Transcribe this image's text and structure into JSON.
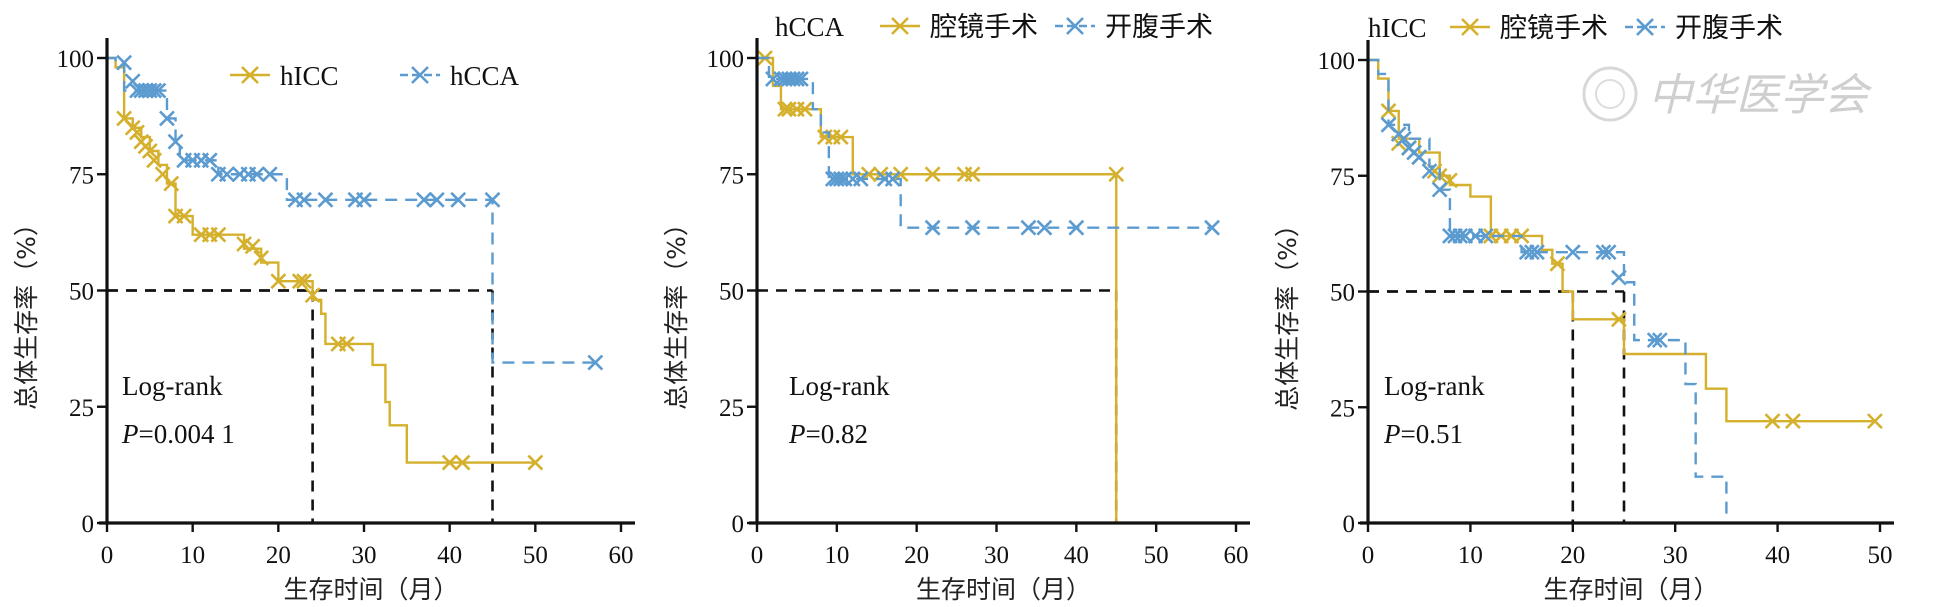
{
  "watermark": "中华医学会",
  "colors": {
    "gold": "#D4B02C",
    "blue": "#5B9BD0",
    "axis": "#111111",
    "ref": "#111111"
  },
  "chart_data": [
    {
      "type": "line",
      "subtype": "kaplan-meier",
      "title": "",
      "xlabel": "生存时间（月）",
      "ylabel": "总体生存率（%）",
      "xlim": [
        0,
        60
      ],
      "ylim": [
        0,
        100
      ],
      "xticks": [
        0,
        10,
        20,
        30,
        40,
        50,
        60
      ],
      "yticks": [
        0,
        25,
        50,
        75,
        100
      ],
      "legend_position": "top-right",
      "annotation": {
        "line1": "Log-rank",
        "p_label": "P",
        "p_value": "=0.004 1"
      },
      "median_lines": [
        24,
        45
      ],
      "series": [
        {
          "name": "hICC",
          "color": "gold",
          "style": "solid",
          "steps": [
            [
              0,
              100
            ],
            [
              1,
              98
            ],
            [
              2,
              96
            ],
            [
              2,
              87
            ],
            [
              3,
              85
            ],
            [
              4,
              83
            ],
            [
              5,
              80
            ],
            [
              6,
              77
            ],
            [
              7,
              73
            ],
            [
              8,
              66
            ],
            [
              10,
              62
            ],
            [
              14,
              62
            ],
            [
              16,
              59
            ],
            [
              18,
              56
            ],
            [
              20,
              52
            ],
            [
              23,
              52
            ],
            [
              24,
              48
            ],
            [
              25,
              45
            ],
            [
              25.5,
              38.5
            ],
            [
              31,
              38.5
            ],
            [
              31,
              34
            ],
            [
              32,
              34
            ],
            [
              32.5,
              26
            ],
            [
              33,
              26
            ],
            [
              33,
              21
            ],
            [
              35,
              21
            ],
            [
              35,
              13
            ],
            [
              50,
              13
            ]
          ],
          "censored": [
            [
              2,
              87
            ],
            [
              3,
              85
            ],
            [
              3.5,
              84
            ],
            [
              4,
              82
            ],
            [
              4.5,
              81
            ],
            [
              5,
              80
            ],
            [
              5.5,
              78
            ],
            [
              6.5,
              75
            ],
            [
              7.5,
              73
            ],
            [
              8,
              66
            ],
            [
              9,
              66
            ],
            [
              11,
              62
            ],
            [
              12,
              62
            ],
            [
              13,
              62
            ],
            [
              16,
              60
            ],
            [
              17,
              59.5
            ],
            [
              18,
              57
            ],
            [
              20,
              52
            ],
            [
              22.5,
              52
            ],
            [
              23,
              52
            ],
            [
              24,
              49
            ],
            [
              27,
              38.5
            ],
            [
              28,
              38.5
            ],
            [
              40,
              13
            ],
            [
              41.5,
              13
            ],
            [
              50,
              13
            ]
          ]
        },
        {
          "name": "hCCA",
          "color": "blue",
          "style": "dashed",
          "steps": [
            [
              0,
              100
            ],
            [
              1,
              99
            ],
            [
              2,
              95
            ],
            [
              2,
              93
            ],
            [
              7,
              93
            ],
            [
              7,
              87
            ],
            [
              8,
              82
            ],
            [
              8.5,
              78
            ],
            [
              13,
              78
            ],
            [
              13,
              75
            ],
            [
              21,
              75
            ],
            [
              21,
              69.5
            ],
            [
              45,
              69.5
            ],
            [
              45,
              34.5
            ],
            [
              57,
              34.5
            ]
          ],
          "censored": [
            [
              2,
              99
            ],
            [
              3,
              95
            ],
            [
              3.5,
              93
            ],
            [
              4,
              93
            ],
            [
              4.5,
              93
            ],
            [
              5,
              93
            ],
            [
              5.5,
              93
            ],
            [
              6,
              93
            ],
            [
              7,
              87
            ],
            [
              8,
              82
            ],
            [
              9,
              78
            ],
            [
              10,
              78
            ],
            [
              11,
              78
            ],
            [
              12,
              78
            ],
            [
              13,
              75
            ],
            [
              14,
              75
            ],
            [
              15.5,
              75
            ],
            [
              16.5,
              75
            ],
            [
              17.5,
              75
            ],
            [
              19,
              75
            ],
            [
              22,
              69.5
            ],
            [
              23,
              69.5
            ],
            [
              25.5,
              69.5
            ],
            [
              29,
              69.5
            ],
            [
              30,
              69.5
            ],
            [
              37,
              69.5
            ],
            [
              38.5,
              69.5
            ],
            [
              41,
              69.5
            ],
            [
              45,
              69.5
            ],
            [
              57,
              34.5
            ]
          ]
        }
      ]
    },
    {
      "type": "line",
      "subtype": "kaplan-meier",
      "title": "hCCA",
      "xlabel": "生存时间（月）",
      "ylabel": "总体生存率（%）",
      "xlim": [
        0,
        60
      ],
      "ylim": [
        0,
        100
      ],
      "xticks": [
        0,
        10,
        20,
        30,
        40,
        50,
        60
      ],
      "yticks": [
        0,
        25,
        50,
        75,
        100
      ],
      "legend_position": "top",
      "annotation": {
        "line1": "Log-rank",
        "p_label": "P",
        "p_value": "=0.82"
      },
      "median_lines": [
        45
      ],
      "series": [
        {
          "name": "腔镜手术",
          "color": "gold",
          "style": "solid",
          "steps": [
            [
              0,
              100
            ],
            [
              2,
              100
            ],
            [
              2,
              94
            ],
            [
              3,
              94
            ],
            [
              3,
              89
            ],
            [
              8,
              89
            ],
            [
              8,
              83
            ],
            [
              12,
              83
            ],
            [
              12,
              75
            ],
            [
              45,
              75
            ],
            [
              45,
              0
            ]
          ],
          "censored": [
            [
              1,
              100
            ],
            [
              3.5,
              89
            ],
            [
              4,
              89
            ],
            [
              5,
              89
            ],
            [
              6,
              89
            ],
            [
              8.5,
              83
            ],
            [
              9.5,
              83
            ],
            [
              10.5,
              83
            ],
            [
              14,
              75
            ],
            [
              15.5,
              75
            ],
            [
              18,
              75
            ],
            [
              22,
              75
            ],
            [
              26,
              75
            ],
            [
              27,
              75
            ],
            [
              45,
              75
            ]
          ]
        },
        {
          "name": "开腹手术",
          "color": "blue",
          "style": "dashed",
          "steps": [
            [
              0,
              100
            ],
            [
              1.5,
              100
            ],
            [
              1.5,
              95.5
            ],
            [
              7,
              95.5
            ],
            [
              7,
              89
            ],
            [
              8,
              89
            ],
            [
              8,
              84
            ],
            [
              9,
              84
            ],
            [
              9,
              74
            ],
            [
              18,
              74
            ],
            [
              18,
              63.5
            ],
            [
              57,
              63.5
            ]
          ],
          "censored": [
            [
              2,
              95.5
            ],
            [
              3,
              95.5
            ],
            [
              3.5,
              95.5
            ],
            [
              4,
              95.5
            ],
            [
              4.5,
              95.5
            ],
            [
              5,
              95.5
            ],
            [
              5.5,
              95.5
            ],
            [
              9.5,
              74
            ],
            [
              10,
              74
            ],
            [
              10.5,
              74
            ],
            [
              11,
              74
            ],
            [
              12,
              74
            ],
            [
              13,
              74
            ],
            [
              16,
              74
            ],
            [
              17,
              74
            ],
            [
              22,
              63.5
            ],
            [
              27,
              63.5
            ],
            [
              34,
              63.5
            ],
            [
              36,
              63.5
            ],
            [
              40,
              63.5
            ],
            [
              57,
              63.5
            ]
          ]
        }
      ]
    },
    {
      "type": "line",
      "subtype": "kaplan-meier",
      "title": "hICC",
      "xlabel": "生存时间（月）",
      "ylabel": "总体生存率（%）",
      "xlim": [
        0,
        50
      ],
      "ylim": [
        0,
        100
      ],
      "xticks": [
        0,
        10,
        20,
        30,
        40,
        50
      ],
      "yticks": [
        0,
        25,
        50,
        75,
        100
      ],
      "legend_position": "top",
      "annotation": {
        "line1": "Log-rank",
        "p_label": "P",
        "p_value": "=0.51"
      },
      "median_lines": [
        20,
        25
      ],
      "series": [
        {
          "name": "腔镜手术",
          "color": "gold",
          "style": "solid",
          "steps": [
            [
              0,
              100
            ],
            [
              1,
              100
            ],
            [
              1,
              96
            ],
            [
              2,
              96
            ],
            [
              2,
              89
            ],
            [
              3,
              89
            ],
            [
              3,
              83
            ],
            [
              5,
              80
            ],
            [
              7,
              75
            ],
            [
              8,
              73
            ],
            [
              10,
              70.5
            ],
            [
              12,
              70.5
            ],
            [
              12,
              62
            ],
            [
              17,
              62
            ],
            [
              17,
              59
            ],
            [
              18,
              56
            ],
            [
              19,
              50
            ],
            [
              20,
              50
            ],
            [
              20,
              44
            ],
            [
              25,
              44
            ],
            [
              25,
              36.5
            ],
            [
              33,
              36.5
            ],
            [
              33,
              29
            ],
            [
              35,
              29
            ],
            [
              35,
              22
            ],
            [
              49.5,
              22
            ]
          ],
          "censored": [
            [
              2,
              89
            ],
            [
              3,
              82
            ],
            [
              4,
              81
            ],
            [
              5,
              79
            ],
            [
              6.5,
              76
            ],
            [
              7,
              75
            ],
            [
              8,
              74
            ],
            [
              12,
              62
            ],
            [
              13,
              62
            ],
            [
              14,
              62
            ],
            [
              15,
              62
            ],
            [
              18.5,
              56
            ],
            [
              24.5,
              44
            ],
            [
              39.5,
              22
            ],
            [
              41.5,
              22
            ],
            [
              49.5,
              22
            ]
          ]
        },
        {
          "name": "开腹手术",
          "color": "blue",
          "style": "dashed",
          "steps": [
            [
              0,
              100
            ],
            [
              1,
              97
            ],
            [
              2,
              93
            ],
            [
              2,
              86
            ],
            [
              4,
              83
            ],
            [
              6,
              77
            ],
            [
              7,
              72
            ],
            [
              8,
              67
            ],
            [
              8,
              62
            ],
            [
              15,
              62
            ],
            [
              15,
              58.5
            ],
            [
              25,
              58.5
            ],
            [
              25,
              52
            ],
            [
              26,
              52
            ],
            [
              26,
              39.5
            ],
            [
              31,
              39.5
            ],
            [
              31,
              30
            ],
            [
              32,
              30
            ],
            [
              32,
              10
            ],
            [
              35,
              10
            ],
            [
              35,
              0
            ]
          ],
          "censored": [
            [
              2,
              86
            ],
            [
              3,
              84
            ],
            [
              3.5,
              83
            ],
            [
              4,
              81
            ],
            [
              4.5,
              80
            ],
            [
              5,
              79
            ],
            [
              6,
              76
            ],
            [
              7,
              72
            ],
            [
              8,
              62
            ],
            [
              8.5,
              62
            ],
            [
              9,
              62
            ],
            [
              9.5,
              62
            ],
            [
              10.5,
              62
            ],
            [
              11.5,
              62
            ],
            [
              15.5,
              58.5
            ],
            [
              16,
              58.5
            ],
            [
              16.5,
              58.5
            ],
            [
              20,
              58.5
            ],
            [
              23,
              58.5
            ],
            [
              23.5,
              58.5
            ],
            [
              24.5,
              53
            ],
            [
              28,
              39.5
            ],
            [
              28.5,
              39.5
            ]
          ]
        }
      ]
    }
  ]
}
